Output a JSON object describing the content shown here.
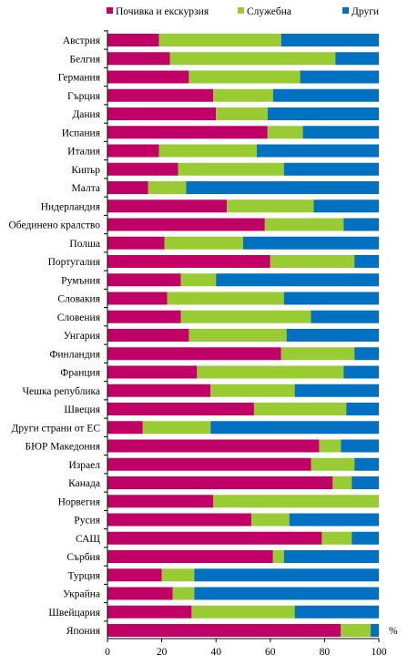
{
  "chart_data": {
    "type": "bar",
    "orientation": "horizontal",
    "stacked": true,
    "categories": [
      "Австрия",
      "Белгия",
      "Германия",
      "Гърция",
      "Дания",
      "Испания",
      "Италия",
      "Кипър",
      "Малта",
      "Нидерландия",
      "Обединено кралство",
      "Полша",
      "Португалия",
      "Румъния",
      "Словакия",
      "Словения",
      "Унгария",
      "Финландия",
      "Франция",
      "Чешка република",
      "Швеция",
      "Други страни от ЕС",
      "БЮР Македония",
      "Израел",
      "Канада",
      "Норвегия",
      "Русия",
      "САЩ",
      "Сърбия",
      "Турция",
      "Украйна",
      "Швейцария",
      "Япония"
    ],
    "series": [
      {
        "name": "Почивка и екскурзия",
        "color": "#c00066",
        "values": [
          19,
          23,
          30,
          39,
          40,
          59,
          19,
          26,
          15,
          44,
          58,
          21,
          60,
          27,
          22,
          27,
          30,
          64,
          33,
          38,
          54,
          13,
          78,
          75,
          83,
          39,
          53,
          79,
          61,
          20,
          24,
          31,
          86
        ]
      },
      {
        "name": "Служебна",
        "color": "#99cc33",
        "values": [
          45,
          61,
          41,
          22,
          19,
          13,
          36,
          39,
          14,
          32,
          29,
          29,
          31,
          13,
          43,
          48,
          36,
          27,
          54,
          31,
          34,
          25,
          8,
          16,
          7,
          61,
          14,
          11,
          4,
          12,
          8,
          38,
          11
        ]
      },
      {
        "name": "Други",
        "color": "#0070c0",
        "values": [
          36,
          16,
          29,
          39,
          41,
          28,
          45,
          35,
          71,
          24,
          13,
          50,
          9,
          60,
          35,
          25,
          34,
          9,
          13,
          31,
          12,
          62,
          14,
          9,
          10,
          0,
          33,
          10,
          35,
          68,
          68,
          31,
          3
        ]
      }
    ],
    "xlim": [
      0,
      100
    ],
    "xticks": [
      "0",
      "20",
      "40",
      "60",
      "80",
      "100"
    ],
    "unit": "%",
    "grid": false,
    "legend_position": "top"
  }
}
